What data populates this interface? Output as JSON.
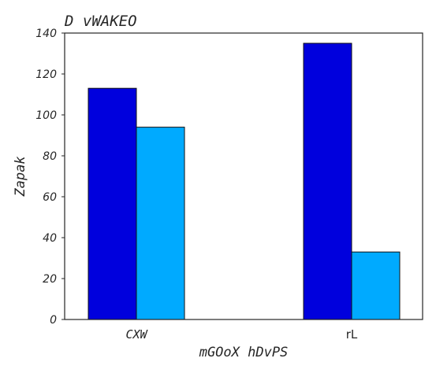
{
  "chart_data": {
    "type": "bar",
    "title": "D vWAKEO",
    "xlabel": "mGOoX hDvPS",
    "ylabel": "Zapak",
    "categories": [
      "CXW",
      "rL"
    ],
    "series": [
      {
        "values": [
          113,
          135
        ],
        "color": "#0000dd"
      },
      {
        "values": [
          94,
          33
        ],
        "color": "#00aaff"
      }
    ],
    "ylim": [
      0,
      140
    ],
    "yticks": [
      0,
      20,
      40,
      60,
      80,
      100,
      120,
      140
    ],
    "grid": false,
    "legend": "none"
  }
}
